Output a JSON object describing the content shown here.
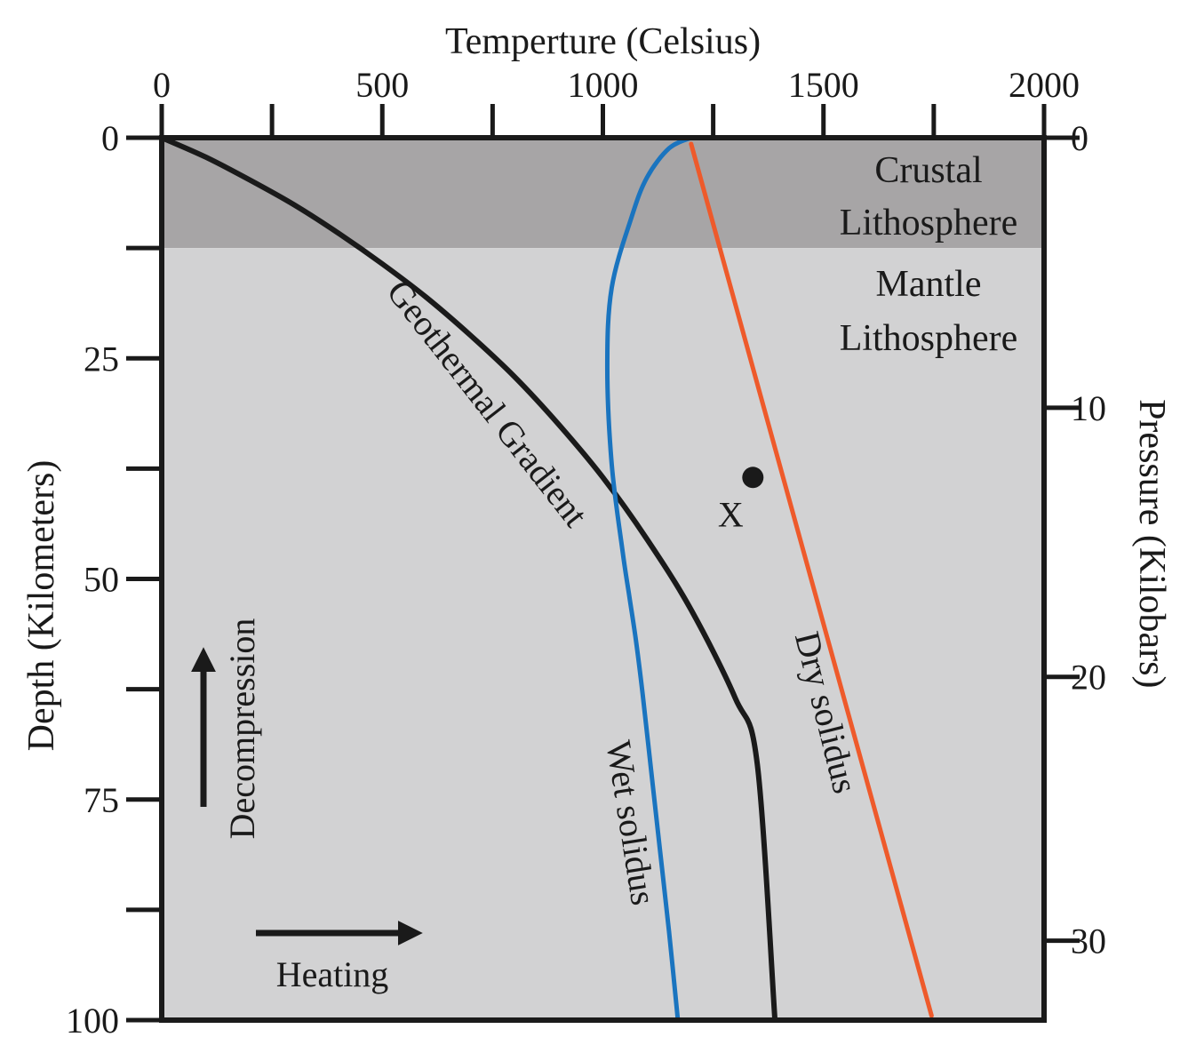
{
  "chart_data": {
    "type": "line",
    "title": "",
    "xlabel": "Temperture (Celsius)",
    "ylabel": "Depth (Kilometers)",
    "ylabel_right": "Pressure (Kilobars)",
    "xlim": [
      0,
      2000
    ],
    "ylim": [
      0,
      100
    ],
    "y_inverted": true,
    "grid": false,
    "x_ticks": [
      "0",
      "500",
      "1000",
      "1500",
      "2000"
    ],
    "x_minor_ticks": [
      250,
      750,
      1250,
      1750
    ],
    "y_ticks": [
      "0",
      "25",
      "50",
      "75",
      "100"
    ],
    "y_minor_ticks": [
      12.5,
      37.5,
      62.5,
      87.5
    ],
    "pressure_ticks": [
      {
        "label": "0",
        "depth": 0
      },
      {
        "label": "10",
        "depth": 30.6
      },
      {
        "label": "20",
        "depth": 61.1
      },
      {
        "label": "30",
        "depth": 91
      }
    ],
    "zones": [
      {
        "name": "Crustal Lithosphere",
        "lines": [
          "Crustal",
          "Lithosphere"
        ],
        "depth_range": [
          0,
          12.5
        ],
        "color": "#a7a5a6"
      },
      {
        "name": "Mantle Lithosphere",
        "lines": [
          "Mantle",
          "Lithosphere"
        ],
        "depth_range": [
          12.5,
          100
        ],
        "color": "#d2d2d3"
      }
    ],
    "series": [
      {
        "name": "Geothermal Gradient",
        "label": "Geothermal Gradient",
        "color": "#1a1a1a",
        "x": [
          0,
          100,
          200,
          300,
          400,
          500,
          600,
          700,
          800,
          900,
          1000,
          1100,
          1200,
          1300,
          1350,
          1390
        ],
        "y": [
          0,
          2.2,
          4.8,
          7.6,
          10.8,
          14.3,
          18.1,
          22.4,
          27.1,
          32.5,
          38.5,
          45.5,
          53.5,
          63.5,
          71,
          100
        ]
      },
      {
        "name": "Wet solidus",
        "label": "Wet solidus",
        "color": "#1a74bf",
        "x": [
          1200,
          1150,
          1100,
          1065,
          1020,
          1010,
          1020,
          1045,
          1060,
          1075,
          1090,
          1110,
          1130,
          1150,
          1170
        ],
        "y": [
          0,
          1.2,
          4.5,
          9,
          17,
          26,
          37,
          47,
          52,
          57,
          63,
          72,
          81,
          90,
          100
        ]
      },
      {
        "name": "Dry solidus",
        "label": "Dry solidus",
        "color": "#ee5a2b",
        "x": [
          1200,
          1745
        ],
        "y": [
          0.7,
          99.5
        ]
      }
    ],
    "points": [
      {
        "label": "X",
        "x": 1340,
        "y": 38.5
      }
    ],
    "annotations": [
      {
        "text": "Decompression",
        "direction": "up"
      },
      {
        "text": "Heating",
        "direction": "right"
      }
    ]
  }
}
